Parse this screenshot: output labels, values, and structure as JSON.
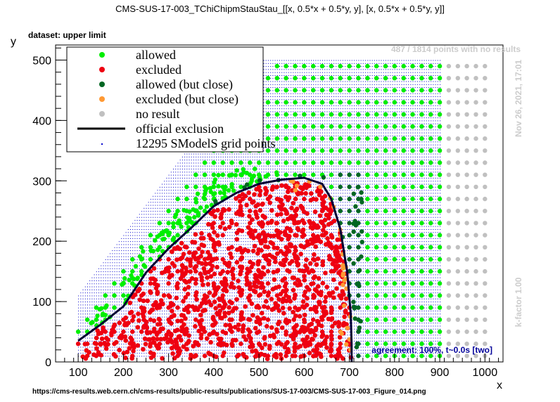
{
  "figure": {
    "title": "CMS-SUS-17-003_TChiChipmStauStau_[[x, 0.5*x + 0.5*y, y], [x, 0.5*x + 0.5*y, y]]",
    "dataset_label": "dataset: upper limit",
    "no_result_note": "487 / 1814 points with no results",
    "timestamp": "Nov 26, 2021, 17:01",
    "kfactor": "k-factor 1.00",
    "agreement": "agreement: 100%, t~0.0s [two]",
    "source_url": "https://cms-results.web.cern.ch/cms-results/public-results/publications/SUS-17-003/CMS-SUS-17-003_Figure_014.png"
  },
  "legend": [
    {
      "label": "allowed",
      "color": "#00ee00",
      "marker": "dot"
    },
    {
      "label": "excluded",
      "color": "#ee0011",
      "marker": "dot"
    },
    {
      "label": "allowed (but close)",
      "color": "#006622",
      "marker": "dot"
    },
    {
      "label": "excluded (but close)",
      "color": "#ff9933",
      "marker": "dot"
    },
    {
      "label": "no result",
      "color": "#c0c0c0",
      "marker": "dot"
    },
    {
      "label": "official exclusion",
      "color": "#000000",
      "marker": "line"
    },
    {
      "label": "12295 SModelS grid points",
      "color": "#0000cc",
      "marker": "tiny"
    }
  ],
  "chart_data": {
    "type": "scatter",
    "xlabel": "x",
    "ylabel": "y",
    "xlim": [
      50,
      1040
    ],
    "ylim": [
      0,
      525
    ],
    "x_ticks": [
      100,
      200,
      300,
      400,
      500,
      600,
      700,
      800,
      900,
      1000
    ],
    "y_ticks": [
      0,
      100,
      200,
      300,
      400,
      500
    ],
    "colors": {
      "allowed": "#00ee00",
      "excluded": "#ee0011",
      "allowed_close": "#006622",
      "excluded_close": "#ff9933",
      "no_result": "#c0c0c0",
      "grid": "#0000cc",
      "exclusion_line": "#000033"
    },
    "official_exclusion": [
      [
        100,
        35
      ],
      [
        150,
        62
      ],
      [
        200,
        92
      ],
      [
        250,
        148
      ],
      [
        300,
        188
      ],
      [
        350,
        222
      ],
      [
        400,
        258
      ],
      [
        450,
        280
      ],
      [
        500,
        295
      ],
      [
        550,
        302
      ],
      [
        600,
        305
      ],
      [
        640,
        295
      ],
      [
        660,
        270
      ],
      [
        680,
        220
      ],
      [
        695,
        150
      ],
      [
        703,
        80
      ],
      [
        705,
        30
      ],
      [
        705,
        0
      ]
    ],
    "grid_region": {
      "x_min": 100,
      "x_max": 900,
      "y_min": 10,
      "y_max": 500,
      "diagonal_offset": 50
    }
  }
}
